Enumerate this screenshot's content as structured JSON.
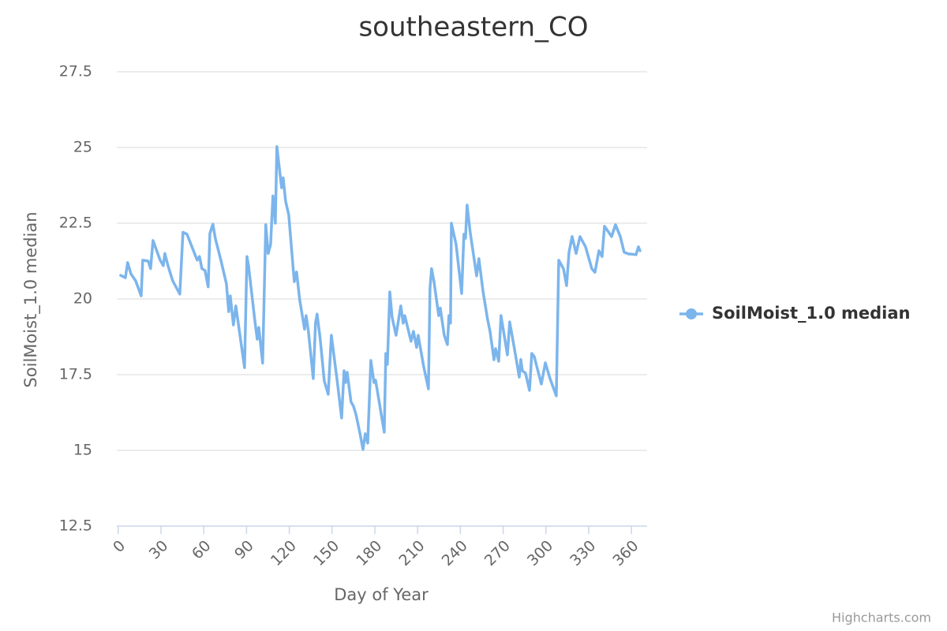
{
  "chart_data": {
    "type": "line",
    "title": "southeastern_CO",
    "x_label": "Day of Year",
    "y_label": "SoilMoist_1.0 median",
    "credits": "Highcharts.com",
    "xlim": [
      -1,
      371
    ],
    "ylim": [
      12.5,
      27.5
    ],
    "xticks": [
      0,
      30,
      60,
      90,
      120,
      150,
      180,
      210,
      240,
      270,
      300,
      330,
      360
    ],
    "yticks": [
      12.5,
      15,
      17.5,
      20,
      22.5,
      25,
      27.5
    ],
    "grid": true,
    "legend": "right",
    "x": [
      1.7,
      5,
      6.6,
      8.9,
      12.2,
      16.1,
      17.2,
      21,
      22.7,
      24.4,
      29.4,
      31.6,
      32.7,
      34.9,
      38.2,
      43.2,
      45.4,
      48.2,
      55.4,
      57,
      58.7,
      60.9,
      63.1,
      64.3,
      66.4,
      68.1,
      72,
      75.9,
      77.5,
      78.6,
      80.8,
      82.5,
      88.6,
      90.3,
      91.4,
      95.8,
      97.5,
      98.6,
      101.3,
      103.5,
      105.2,
      106.9,
      108.5,
      110.2,
      111.3,
      114.6,
      115.7,
      117.4,
      119.6,
      123.5,
      125.1,
      127.3,
      130.7,
      131.8,
      133.4,
      136.8,
      138.4,
      139.5,
      141.7,
      144.5,
      147.3,
      149.5,
      153.4,
      156.7,
      158.4,
      159.5,
      160.6,
      163.3,
      165,
      166.7,
      169.4,
      171.7,
      173.3,
      175,
      177.2,
      179.4,
      180.5,
      186.6,
      187.7,
      188.8,
      190.5,
      192.1,
      194.9,
      198.2,
      199.9,
      201,
      205.4,
      207.1,
      209.3,
      210.4,
      214.3,
      217.6,
      218.7,
      219.8,
      221.5,
      224.8,
      225.9,
      228.7,
      230.9,
      232,
      233.1,
      233.7,
      237,
      240.9,
      242.5,
      243.6,
      244.7,
      246.9,
      251.4,
      253,
      255.8,
      259.1,
      260.8,
      263.6,
      264.7,
      266.9,
      268.5,
      273,
      274.6,
      278.5,
      281.3,
      282.4,
      283.5,
      285.7,
      288.5,
      290.1,
      291.8,
      296.8,
      299.6,
      302.9,
      307.3,
      309,
      312.3,
      314.5,
      316.2,
      318.4,
      321.2,
      323.9,
      327.8,
      332.2,
      334.4,
      337.2,
      339.4,
      341.1,
      346.1,
      348.8,
      352.2,
      354.9,
      358.3,
      359.9,
      363.2,
      364.9,
      366
    ],
    "series": [
      {
        "name": "SoilMoist_1.0 median",
        "color": "#7cb5ec",
        "values": [
          20.78,
          20.7,
          21.2,
          20.83,
          20.6,
          20.1,
          21.28,
          21.25,
          21.0,
          21.93,
          21.28,
          21.1,
          21.5,
          21.1,
          20.6,
          20.16,
          22.2,
          22.14,
          21.28,
          21.4,
          21.0,
          20.94,
          20.4,
          22.16,
          22.47,
          22.0,
          21.28,
          20.5,
          19.58,
          20.1,
          19.14,
          19.77,
          17.73,
          21.4,
          21.1,
          19.3,
          18.67,
          19.06,
          17.88,
          22.45,
          21.5,
          21.8,
          23.4,
          22.5,
          25.03,
          23.67,
          24.0,
          23.23,
          22.78,
          20.57,
          20.89,
          19.97,
          19.0,
          19.45,
          18.93,
          17.37,
          19.2,
          19.5,
          18.67,
          17.3,
          16.85,
          18.8,
          17.37,
          16.07,
          17.63,
          17.24,
          17.58,
          16.6,
          16.46,
          16.2,
          15.6,
          15.03,
          15.55,
          15.24,
          17.97,
          17.24,
          17.32,
          15.6,
          18.2,
          17.84,
          20.23,
          19.4,
          18.8,
          19.77,
          19.2,
          19.45,
          18.6,
          18.93,
          18.4,
          18.8,
          17.76,
          17.03,
          20.36,
          21.0,
          20.57,
          19.45,
          19.7,
          18.8,
          18.49,
          19.45,
          19.2,
          22.5,
          21.8,
          20.18,
          22.14,
          22.0,
          23.1,
          22.2,
          20.76,
          21.33,
          20.28,
          19.32,
          18.93,
          17.99,
          18.36,
          17.94,
          19.45,
          18.15,
          19.24,
          18.2,
          17.42,
          18.0,
          17.63,
          17.55,
          16.98,
          18.2,
          18.1,
          17.19,
          17.89,
          17.37,
          16.8,
          21.28,
          21.0,
          20.44,
          21.54,
          22.06,
          21.5,
          22.06,
          21.72,
          21.0,
          20.88,
          21.59,
          21.4,
          22.4,
          22.06,
          22.45,
          22.06,
          21.54,
          21.48,
          21.48,
          21.46,
          21.72,
          21.59
        ]
      }
    ]
  }
}
